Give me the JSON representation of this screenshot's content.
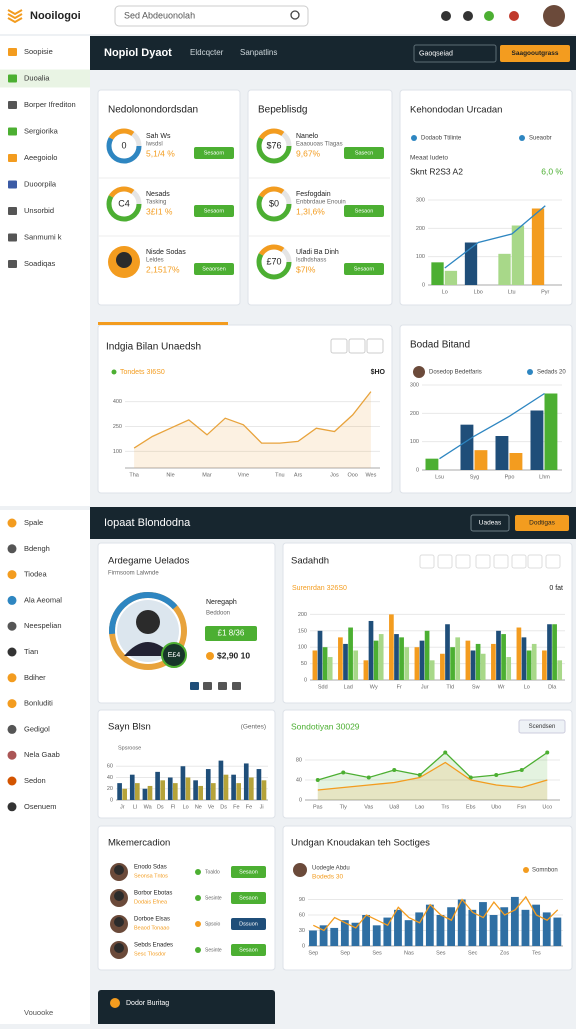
{
  "header": {
    "logo": "Nooilogoi",
    "search": "Sed Abdeuonolah"
  },
  "sidebar": {
    "top": [
      "Soopisie",
      "Duoalia",
      "Borper Ifrediton",
      "Sergiorika",
      "Aeegoiolo",
      "Duoorpila",
      "Unsorbid",
      "Sanmumi k",
      "Soadiqas"
    ],
    "bottom": [
      "Spale",
      "Bdengh",
      "Tiodea",
      "Ala Aeomal",
      "Neespelian",
      "Tian",
      "Bdiher",
      "Bonluditi",
      "Gedigol",
      "Nela Gaab",
      "Sedon",
      "Osenuem"
    ],
    "footer": "Vouooke"
  },
  "topbar": {
    "title": "Nopiol Dyaot",
    "tabs": [
      "Eldcqcter",
      "Sanpatlins"
    ],
    "select": "Gaoqseiad",
    "button": "Saagooutgrass"
  },
  "stats_left": {
    "title": "Nedolonondordsdan",
    "rows": [
      {
        "label": "Sah Ws",
        "sub": "Iwsdsl",
        "value": "5,1/4 %",
        "center": "0",
        "button": "Sesaorn"
      },
      {
        "label": "Nesads",
        "sub": "Tasking",
        "value": "3£I1 %",
        "center": "C4",
        "button": "Sesaorn"
      },
      {
        "label": "Nisde Sodas",
        "sub": "Leldes",
        "value": "2,1517%",
        "button": "Seaorsen"
      }
    ]
  },
  "stats_right": {
    "title": "Bepeblisdg",
    "rows": [
      {
        "label": "Nanelo",
        "sub": "Eaaouoas Tlagas",
        "value": "9,67%",
        "center": "$76",
        "button": "Sasecn"
      },
      {
        "label": "Fesfogdain",
        "sub": "Enbbrdaue Enouin",
        "value": "1,3I,6%",
        "center": "$0",
        "button": "Sesaon"
      },
      {
        "label": "Uladi Ba Dinh",
        "sub": "Isdhdshass",
        "value": "$7I%",
        "center": "£70",
        "button": "Sesaorn"
      }
    ]
  },
  "section2": {
    "title": "Iopaat Blondodna",
    "buttons": [
      "Uadeas",
      "Dodtigas"
    ]
  },
  "profile": {
    "title": "Ardegame Uelados",
    "subtitle": "Firmsoom Lalwnde",
    "name": "Neregaph",
    "role": "Beddoon",
    "badge": "E£4",
    "amount": "£1 8/36",
    "balance": "$2,90 10"
  },
  "members": {
    "title": "Mkemercadion",
    "rows": [
      {
        "name": "Enodo Sdas",
        "sub": "Seonsa Tntos",
        "status": "Toaldo",
        "button": "Sesaon"
      },
      {
        "name": "Borbor Ebotas",
        "sub": "Dodais Efnea",
        "status": "Sesinte",
        "button": "Sesaon"
      },
      {
        "name": "Dorboe Elsas",
        "sub": "Beaod Tonaao",
        "status": "Spsoio",
        "button": "Dssuon"
      },
      {
        "name": "Sebds Enades",
        "sub": "Sesc Tlosdor",
        "status": "Sesinte",
        "button": "Sesaon"
      }
    ]
  },
  "footer_card": "Dodor Buritag",
  "charts": {
    "kehondodan": {
      "type": "bar",
      "title": "Kehondodan Urcadan",
      "subtitle": "Meaat Iudeto",
      "note": "Sknt R2S3 A2",
      "note_value": "6,0 %",
      "categories": [
        "Lo",
        "Lbo",
        "Ltu",
        "Pyr"
      ],
      "series": [
        {
          "name": "Dodaob Ttilinte",
          "colors": [
            "#4caf32",
            "#1f4e79",
            "#a8d889",
            "#f39c1f"
          ],
          "values": [
            80,
            150,
            110,
            270
          ]
        },
        {
          "color": "#a8d889",
          "values": [
            50,
            null,
            210,
            null
          ]
        },
        {
          "name": "Sueaobr",
          "type": "line",
          "color": "#2e86c1",
          "values": [
            60,
            150,
            180,
            280
          ]
        }
      ],
      "ylim": [
        0,
        300
      ],
      "yticks": [
        0,
        100,
        200,
        300
      ],
      "grid": true
    },
    "indgia": {
      "type": "line",
      "title": "Indgia Bilan Unaedsh",
      "subtitle": "Tondets 3I6S0",
      "note_value": "$HO",
      "categories": [
        "Tha",
        null,
        "Nle",
        null,
        "Mar",
        null,
        "Vme",
        null,
        "Tnu",
        "Ars",
        null,
        "Jos",
        "Ooo",
        "Wes"
      ],
      "series": [
        {
          "color": "#e8a33c",
          "area": true,
          "values": [
            120,
            190,
            240,
            290,
            200,
            300,
            260,
            150,
            150,
            160,
            240,
            220,
            320,
            460
          ]
        }
      ],
      "ylim": [
        0,
        500
      ],
      "yticks": [
        100,
        250,
        400
      ],
      "grid": true
    },
    "bodad": {
      "type": "bar",
      "title": "Bodad Bitand",
      "categories": [
        "Lsu",
        "Syg",
        "Ppo",
        "Lhm"
      ],
      "series": [
        {
          "name": "Dosedop Bedetfaris",
          "colors": [
            "#4caf32",
            "#1f4e79",
            "#1f4e79",
            "#1f4e79"
          ],
          "values": [
            40,
            160,
            120,
            210
          ]
        },
        {
          "colors": [
            null,
            "#f39c1f",
            "#f39c1f",
            "#4caf32"
          ],
          "values": [
            null,
            70,
            60,
            270
          ]
        },
        {
          "name": "Sedads 20",
          "type": "line",
          "color": "#2e86c1",
          "values": [
            40,
            120,
            190,
            270
          ]
        }
      ],
      "ylim": [
        0,
        300
      ],
      "yticks": [
        0,
        100,
        200,
        300
      ],
      "grid": true
    },
    "sadahdh": {
      "type": "bar",
      "title": "Sadahdh",
      "subtitle": "Surenrdan 326S0",
      "note_value": "0 fat",
      "categories": [
        "Sdd",
        "Lad",
        "Wy",
        "Fr",
        "Jur",
        "Tld",
        "Sw",
        "Wr",
        "Lo",
        "Dla"
      ],
      "series": [
        {
          "color": "#f39c1f",
          "values": [
            90,
            130,
            60,
            200,
            100,
            80,
            120,
            110,
            160,
            90
          ]
        },
        {
          "color": "#1f4e79",
          "values": [
            150,
            110,
            180,
            140,
            120,
            170,
            90,
            150,
            130,
            170
          ]
        },
        {
          "color": "#4caf32",
          "values": [
            100,
            160,
            120,
            130,
            150,
            100,
            110,
            140,
            90,
            170
          ]
        },
        {
          "color": "#a8d889",
          "values": [
            70,
            90,
            140,
            100,
            60,
            130,
            80,
            70,
            110,
            60
          ]
        }
      ],
      "ylim": [
        0,
        250
      ],
      "yticks": [
        0,
        50,
        100,
        150,
        200
      ],
      "grid": true
    },
    "sayn": {
      "type": "bar",
      "title": "Sayn Blsn",
      "subtitle": "Spsroose",
      "note_value": "(Gentes)",
      "categories": [
        "Jr",
        "Ll",
        "Wa",
        "Ds",
        "Fl",
        "Lo",
        "Ne",
        "Ve",
        "Ds",
        "Fe",
        "Fe",
        "Ji"
      ],
      "series": [
        {
          "color": "#1f4e79",
          "values": [
            30,
            45,
            20,
            50,
            40,
            60,
            35,
            55,
            70,
            45,
            65,
            55
          ]
        },
        {
          "color": "#b5a33a",
          "values": [
            20,
            30,
            25,
            35,
            30,
            40,
            25,
            30,
            45,
            30,
            40,
            35
          ]
        }
      ],
      "ylim": [
        0,
        80
      ],
      "yticks": [
        0,
        20,
        40,
        60
      ],
      "grid": true
    },
    "sondotiyan": {
      "type": "line",
      "title": "Sondotiyan 30029",
      "button": "Scendsen",
      "categories": [
        "Pas",
        "Tly",
        "Vas",
        "Ua8",
        "Lao",
        "Trs",
        "Ebs",
        "Ubo",
        "Fsn",
        "Uco"
      ],
      "series": [
        {
          "color": "#4caf32",
          "area": true,
          "dots": true,
          "values": [
            40,
            55,
            45,
            60,
            50,
            95,
            45,
            50,
            60,
            95
          ]
        },
        {
          "color": "#f39c1f",
          "area": true,
          "values": [
            20,
            25,
            30,
            35,
            45,
            75,
            40,
            30,
            25,
            40
          ]
        }
      ],
      "ylim": [
        0,
        120
      ],
      "yticks": [
        0,
        40,
        80
      ],
      "grid": true
    },
    "undgan": {
      "type": "bar",
      "title": "Undgan Knoudakan teh Soctiges",
      "note": "Bodeds 30",
      "categories": [
        "Sep",
        null,
        null,
        "Sep",
        null,
        null,
        "Ses",
        null,
        null,
        "Nas",
        null,
        null,
        "Ses",
        null,
        null,
        "Sec",
        null,
        null,
        "Zos",
        null,
        null,
        "Tes",
        null,
        null
      ],
      "series": [
        {
          "name": "Uodegle Abdu",
          "color": "#2f6fa3",
          "values": [
            30,
            40,
            35,
            50,
            45,
            60,
            40,
            55,
            70,
            50,
            65,
            80,
            60,
            75,
            90,
            70,
            85,
            60,
            75,
            95,
            70,
            80,
            65,
            55
          ]
        },
        {
          "name": "Somnbon",
          "type": "line",
          "color": "#f39c1f",
          "values": [
            40,
            30,
            55,
            45,
            35,
            60,
            50,
            40,
            75,
            55,
            45,
            80,
            60,
            50,
            90,
            65,
            55,
            85,
            60,
            70,
            95,
            60,
            50,
            70
          ]
        }
      ],
      "ylim": [
        0,
        120
      ],
      "yticks": [
        0,
        30,
        60,
        90
      ],
      "grid": true
    }
  }
}
